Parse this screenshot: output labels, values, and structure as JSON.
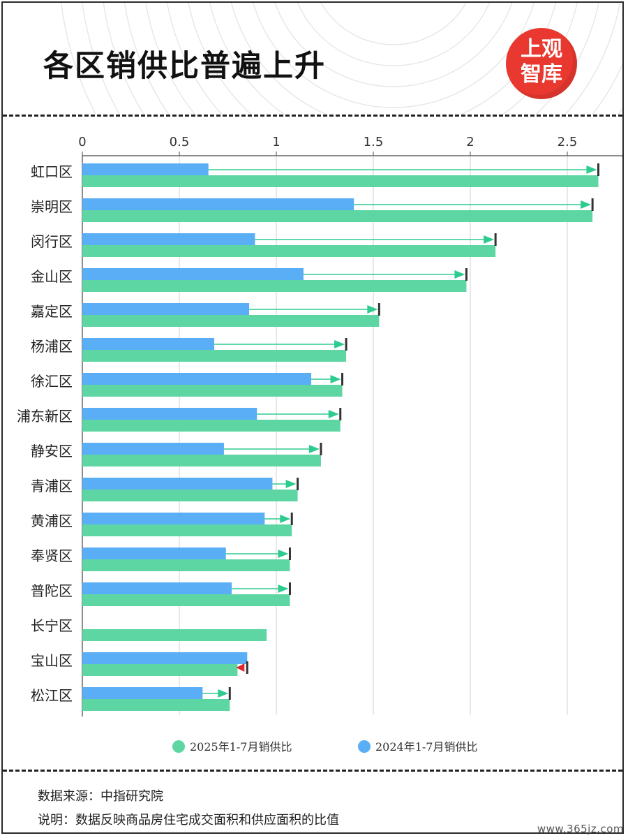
{
  "header": {
    "title": "各区销供比普遍上升"
  },
  "logo": {
    "line1": "上观",
    "line2": "智库",
    "color": "#e8382f"
  },
  "chart_data": {
    "type": "bar",
    "orientation": "horizontal",
    "categories": [
      "虹口区",
      "崇明区",
      "闵行区",
      "金山区",
      "嘉定区",
      "杨浦区",
      "徐汇区",
      "浦东新区",
      "静安区",
      "青浦区",
      "黄浦区",
      "奉贤区",
      "普陀区",
      "长宁区",
      "宝山区",
      "松江区"
    ],
    "series": [
      {
        "name": "2024年1-7月销供比",
        "color": "#5aaef5",
        "values": [
          0.65,
          1.4,
          0.89,
          1.14,
          0.86,
          0.68,
          1.18,
          0.9,
          0.73,
          0.98,
          0.94,
          0.74,
          0.77,
          null,
          0.85,
          0.62
        ]
      },
      {
        "name": "2025年1-7月销供比",
        "color": "#5ed6a4",
        "values": [
          2.66,
          2.63,
          2.13,
          1.98,
          1.53,
          1.36,
          1.34,
          1.33,
          1.23,
          1.11,
          1.08,
          1.07,
          1.07,
          0.95,
          0.8,
          0.76
        ]
      }
    ],
    "xticks": [
      "0",
      "0.5",
      "1",
      "1.5",
      "2",
      "2.5"
    ],
    "xlim": [
      0,
      2.8
    ],
    "increase_arrow_color": "#2ecb8f",
    "decrease_arrow_color": "#e0262e",
    "legend_position": "bottom",
    "grid": true
  },
  "footer": {
    "source": "数据来源：中指研究院",
    "note": "说明：数据反映商品房住宅成交面积和供应面积的比值"
  },
  "watermark": "www.365jz.com"
}
